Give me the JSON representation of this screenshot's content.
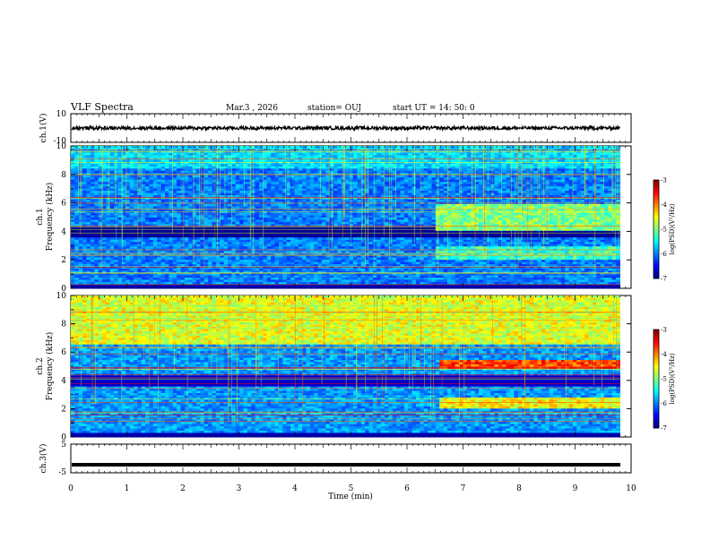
{
  "header": {
    "title": "VLF Spectra",
    "date": "Mar.3 , 2026",
    "station": "station= OUJ",
    "start": "start UT = 14: 50: 0"
  },
  "chart_data": [
    {
      "type": "line",
      "name": "ch1-waveform",
      "ylabel": "ch.1(V)",
      "ylim": [
        -10,
        10
      ],
      "ticks": [
        "10",
        "-10"
      ],
      "level": 0,
      "xlim": [
        0,
        10
      ]
    },
    {
      "type": "heatmap",
      "name": "ch1-spectrogram",
      "ylabel": "ch.1\nFrequency (kHz)",
      "ylabel_top": "ch.1",
      "ylabel_bottom": "Frequency (kHz)",
      "ylim": [
        0,
        10
      ],
      "yticks": [
        "0",
        "2",
        "4",
        "6",
        "8",
        "10"
      ],
      "xlim": [
        0,
        9.8
      ],
      "colorbar": {
        "label": "log(PSD)(V²/Hz)",
        "ticks": [
          "-3",
          "-4",
          "-5",
          "-6",
          "-7"
        ],
        "range": [
          -7,
          -3
        ]
      },
      "features": [
        {
          "band_khz": [
            4,
            6
          ],
          "from_min": 6.5,
          "to_min": 9.8,
          "level": -5.0
        },
        {
          "band_khz": [
            2,
            3
          ],
          "from_min": 6.5,
          "to_min": 9.8,
          "level": -5.3
        }
      ]
    },
    {
      "type": "heatmap",
      "name": "ch2-spectrogram",
      "ylabel_top": "ch.2",
      "ylabel_bottom": "Frequency (kHz)",
      "ylim": [
        0,
        10
      ],
      "yticks": [
        "0",
        "2",
        "4",
        "6",
        "8",
        "10"
      ],
      "xlim": [
        0,
        9.8
      ],
      "colorbar": {
        "label": "log(PSD)(V²/Hz)",
        "ticks": [
          "-3",
          "-4",
          "-5",
          "-6",
          "-7"
        ],
        "range": [
          -7,
          -3
        ]
      },
      "features": [
        {
          "band_khz": [
            6.5,
            10
          ],
          "from_min": 0,
          "to_min": 9.8,
          "level": -4.6
        },
        {
          "band_khz": [
            4.8,
            5.5
          ],
          "from_min": 6.6,
          "to_min": 9.8,
          "level": -3.8
        },
        {
          "band_khz": [
            2.0,
            2.8
          ],
          "from_min": 6.6,
          "to_min": 9.8,
          "level": -4.5
        }
      ]
    },
    {
      "type": "line",
      "name": "ch3-waveform",
      "ylabel": "ch.3(V)",
      "ylim": [
        -5,
        5
      ],
      "ticks": [
        "5",
        "-5"
      ],
      "level": -2.2,
      "xlim": [
        0,
        10
      ]
    }
  ],
  "xaxis": {
    "label": "Time (min)",
    "ticks": [
      "0",
      "1",
      "2",
      "3",
      "4",
      "5",
      "6",
      "7",
      "8",
      "9",
      "10"
    ],
    "xlim": [
      0,
      10
    ]
  }
}
